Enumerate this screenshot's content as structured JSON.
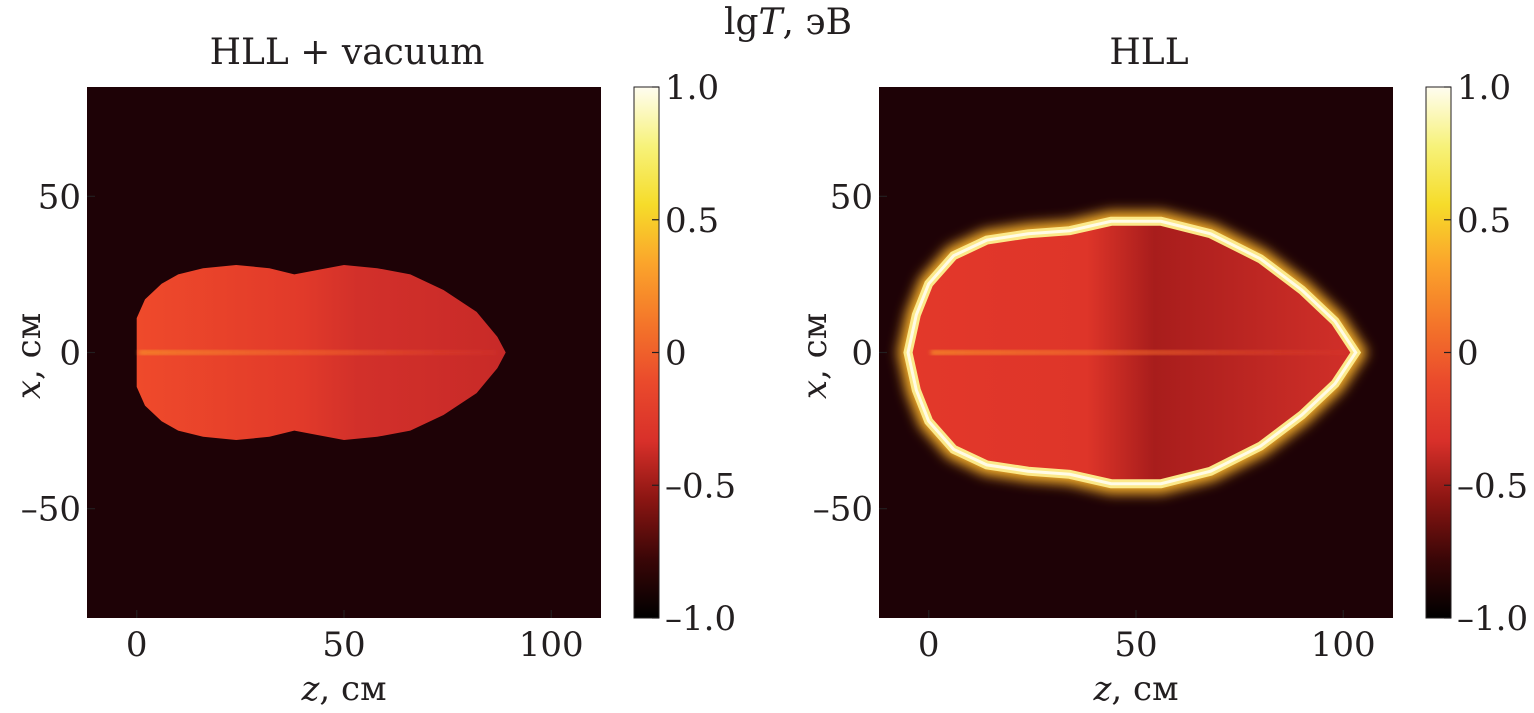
{
  "suptitle": {
    "prefix": "lg",
    "var": "T",
    "unit": ", эВ"
  },
  "colorbar": {
    "range": [
      -1.0,
      1.0
    ],
    "ticks": [
      1.0,
      0.5,
      0,
      -0.5,
      -1.0
    ],
    "tick_labels": [
      "1.0",
      "0.5",
      "0",
      "–0.5",
      "–1.0"
    ],
    "colormap": "hot",
    "stops": [
      "#000000",
      "#3a0607",
      "#8a1512",
      "#d8302a",
      "#ea4a2c",
      "#f4762a",
      "#fba42b",
      "#f6dc2a",
      "#f7f27a",
      "#fffdf0"
    ]
  },
  "chart_data": [
    {
      "type": "heatmap",
      "title": "HLL + vacuum",
      "xlabel": {
        "var": "z",
        "unit": ", см"
      },
      "ylabel": {
        "var": "x",
        "unit": ", см"
      },
      "xlim": [
        -12,
        112
      ],
      "ylim": [
        -85,
        85
      ],
      "xticks": [
        0,
        50,
        100
      ],
      "xtick_labels": [
        "0",
        "50",
        "100"
      ],
      "yticks": [
        50,
        0,
        -50
      ],
      "ytick_labels": [
        "50",
        "0",
        "–50"
      ],
      "background_lgT": -0.9,
      "region_boundary_zx": [
        [
          0,
          -11
        ],
        [
          2,
          -17
        ],
        [
          6,
          -22
        ],
        [
          10,
          -25
        ],
        [
          16,
          -27
        ],
        [
          24,
          -28
        ],
        [
          32,
          -27
        ],
        [
          38,
          -25
        ],
        [
          42,
          -26
        ],
        [
          50,
          -28
        ],
        [
          58,
          -27
        ],
        [
          66,
          -25
        ],
        [
          74,
          -20
        ],
        [
          82,
          -13
        ],
        [
          87,
          -5
        ],
        [
          89,
          0
        ],
        [
          87,
          5
        ],
        [
          82,
          13
        ],
        [
          74,
          20
        ],
        [
          66,
          25
        ],
        [
          58,
          27
        ],
        [
          50,
          28
        ],
        [
          42,
          26
        ],
        [
          38,
          25
        ],
        [
          32,
          27
        ],
        [
          24,
          28
        ],
        [
          16,
          27
        ],
        [
          10,
          25
        ],
        [
          6,
          22
        ],
        [
          2,
          17
        ],
        [
          0,
          11
        ]
      ],
      "region_lgT": -0.38,
      "axis_jet_lgT": -0.05,
      "shell_lgT": null
    },
    {
      "type": "heatmap",
      "title": "HLL",
      "xlabel": {
        "var": "z",
        "unit": ", см"
      },
      "ylabel": {
        "var": "x",
        "unit": ", см"
      },
      "xlim": [
        -12,
        112
      ],
      "ylim": [
        -85,
        85
      ],
      "xticks": [
        0,
        50,
        100
      ],
      "xtick_labels": [
        "0",
        "50",
        "100"
      ],
      "yticks": [
        50,
        0,
        -50
      ],
      "ytick_labels": [
        "50",
        "0",
        "–50"
      ],
      "background_lgT": -0.9,
      "region_boundary_zx": [
        [
          -5,
          0
        ],
        [
          -3,
          -12
        ],
        [
          0,
          -22
        ],
        [
          6,
          -31
        ],
        [
          14,
          -36
        ],
        [
          24,
          -38
        ],
        [
          34,
          -39
        ],
        [
          44,
          -42
        ],
        [
          56,
          -42
        ],
        [
          68,
          -38
        ],
        [
          80,
          -30
        ],
        [
          90,
          -20
        ],
        [
          98,
          -10
        ],
        [
          103,
          0
        ],
        [
          98,
          10
        ],
        [
          90,
          20
        ],
        [
          80,
          30
        ],
        [
          68,
          38
        ],
        [
          56,
          42
        ],
        [
          44,
          42
        ],
        [
          34,
          39
        ],
        [
          24,
          38
        ],
        [
          14,
          36
        ],
        [
          6,
          31
        ],
        [
          0,
          22
        ],
        [
          -3,
          12
        ]
      ],
      "region_lgT": -0.4,
      "axis_jet_lgT": -0.05,
      "shell_lgT": 0.85
    }
  ]
}
